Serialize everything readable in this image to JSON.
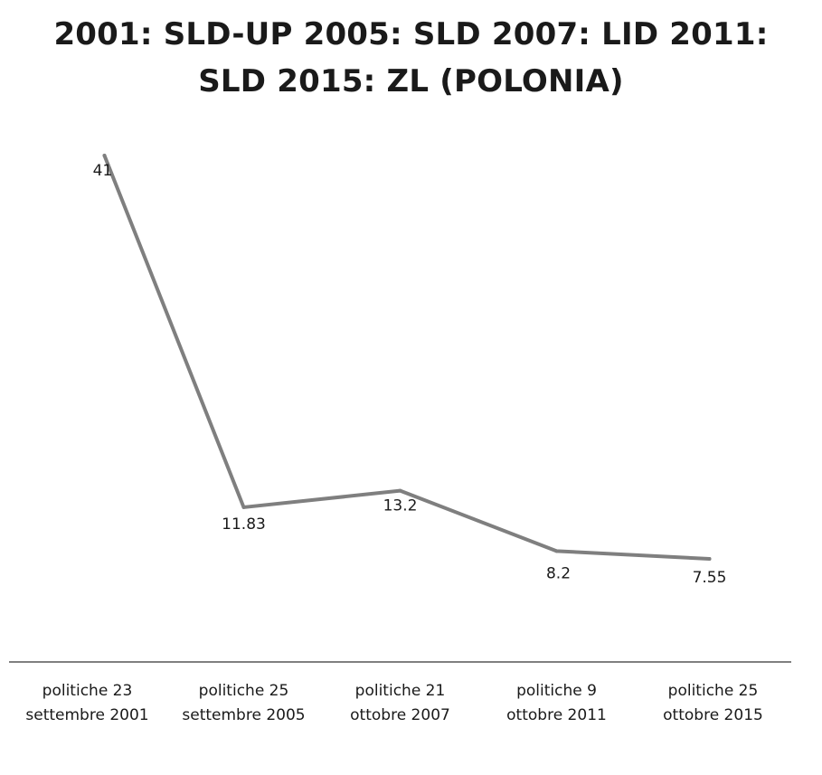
{
  "chart_data": {
    "type": "line",
    "title_lines": [
      "2001: SLD-UP 2005: SLD 2007: LID 2011:",
      "SLD 2015: ZL (POLONIA)"
    ],
    "categories": [
      [
        "politiche 23",
        "settembre 2001"
      ],
      [
        "politiche 25",
        "settembre 2005"
      ],
      [
        "politiche 21",
        "ottobre 2007"
      ],
      [
        "politiche 9",
        "ottobre 2011"
      ],
      [
        "politiche 25",
        "ottobre 2015"
      ]
    ],
    "values": [
      41,
      11.83,
      13.2,
      8.2,
      7.55
    ],
    "data_labels": [
      "41",
      "11.83",
      "13.2",
      "8.2",
      "7.55"
    ],
    "line_color": "#7f7f7f",
    "axis_color": "#555555",
    "grid": false,
    "legend": "none"
  }
}
